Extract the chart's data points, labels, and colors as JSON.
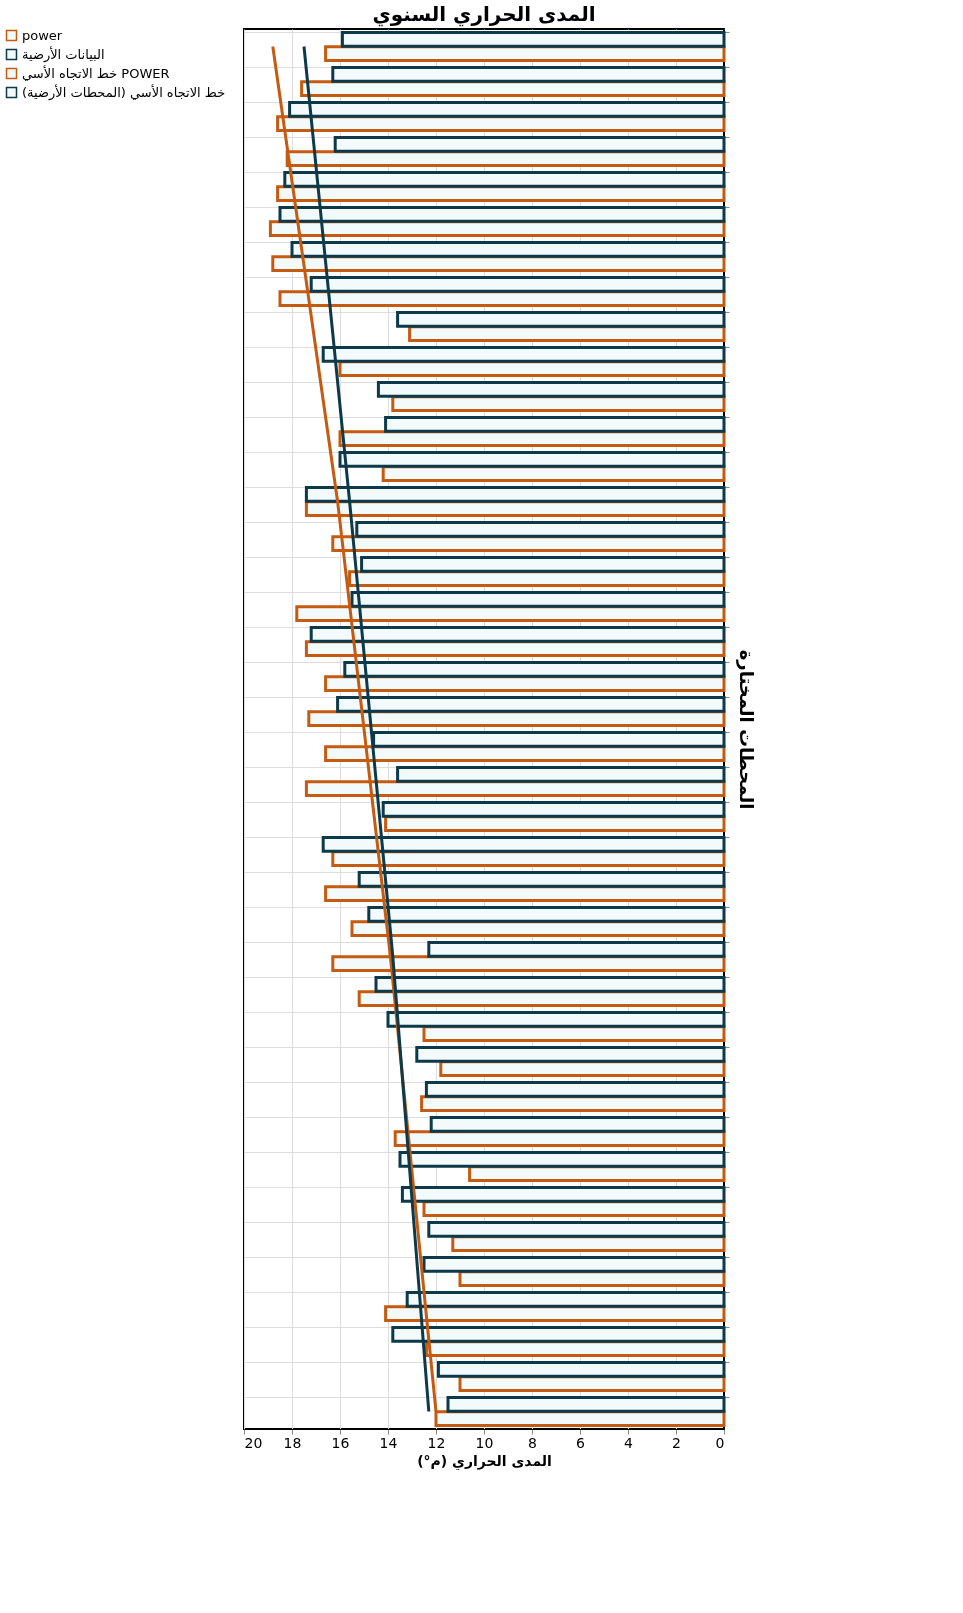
{
  "chart_data": {
    "type": "bar",
    "orientation": "horizontal",
    "title": "المدى الحراري السنوي",
    "xlabel": "المدى الحراري (م°)",
    "ylabel": "المحطات المختارة",
    "categories": [
      null,
      null,
      null,
      null,
      null,
      null,
      null,
      null,
      null,
      null,
      null,
      null,
      null,
      null,
      null,
      null,
      null,
      null,
      null,
      null,
      null,
      null,
      null,
      null,
      null,
      null,
      null,
      null,
      null,
      null,
      null,
      null,
      null,
      null,
      null,
      null,
      null,
      null,
      null,
      null
    ],
    "series": [
      {
        "name": "power",
        "color": "#c55a11",
        "values": [
          16.6,
          17.6,
          18.6,
          18.2,
          18.6,
          18.9,
          18.8,
          18.5,
          13.1,
          16.0,
          13.8,
          16.0,
          14.2,
          17.4,
          16.3,
          15.6,
          17.8,
          17.4,
          16.6,
          17.3,
          16.6,
          17.4,
          14.1,
          16.3,
          16.6,
          15.5,
          16.3,
          15.2,
          12.5,
          11.8,
          12.6,
          13.7,
          10.6,
          12.5,
          11.3,
          11.0,
          14.1,
          12.4,
          11.0,
          12.0
        ]
      },
      {
        "name": "البيانات الأرضية",
        "color": "#0d3a4a",
        "values": [
          15.9,
          16.3,
          18.1,
          16.2,
          18.3,
          18.5,
          18.0,
          17.2,
          13.6,
          16.7,
          14.4,
          14.1,
          16.0,
          17.4,
          15.3,
          15.1,
          15.5,
          17.2,
          15.8,
          16.1,
          14.6,
          13.6,
          14.2,
          16.7,
          15.2,
          14.8,
          12.3,
          14.5,
          14.0,
          12.8,
          12.4,
          12.2,
          13.5,
          13.4,
          12.3,
          12.5,
          13.2,
          13.8,
          11.9,
          11.5
        ]
      },
      {
        "name": "خط الاتجاه الأسي POWER",
        "color": "#c55a11",
        "type": "line",
        "values": [
          18.8,
          null,
          null,
          null,
          null,
          null,
          null,
          null,
          null,
          null,
          null,
          null,
          null,
          16.1,
          null,
          null,
          null,
          null,
          null,
          null,
          null,
          null,
          null,
          null,
          null,
          null,
          13.9,
          null,
          null,
          null,
          null,
          null,
          null,
          null,
          null,
          null,
          null,
          null,
          null,
          12.0
        ]
      },
      {
        "name": "خط الاتجاه الأسي (المحطات الأرضية)",
        "color": "#0d3a4a",
        "type": "line",
        "values": [
          17.5,
          null,
          null,
          null,
          null,
          null,
          null,
          null,
          null,
          null,
          null,
          null,
          null,
          15.6,
          null,
          null,
          null,
          null,
          null,
          null,
          null,
          null,
          null,
          null,
          null,
          null,
          13.8,
          null,
          null,
          null,
          null,
          null,
          null,
          null,
          null,
          null,
          null,
          null,
          null,
          12.3
        ]
      }
    ],
    "xlim": [
      20,
      0
    ],
    "xticks": [
      20,
      18,
      16,
      14,
      12,
      10,
      8,
      6,
      4,
      2,
      0
    ],
    "grid": true,
    "legend": "left"
  }
}
